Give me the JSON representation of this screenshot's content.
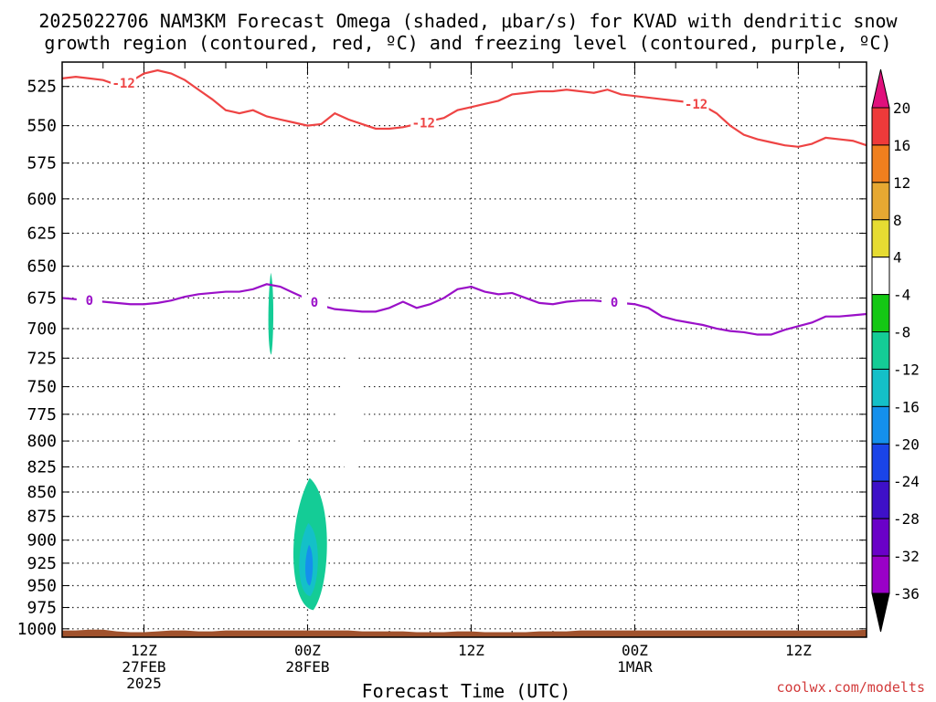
{
  "title": {
    "line1": "2025022706 NAM3KM Forecast Omega (shaded, μbar/s) for KVAD with dendritic snow",
    "line2": "growth region (contoured, red, ºC) and freezing level (contoured, purple, ºC)"
  },
  "credit": "coolwx.com/modelts",
  "chart_data": {
    "type": "heatmap",
    "xlabel": "Forecast Time (UTC)",
    "x_ticks": [
      {
        "hour": 6,
        "label": "12Z",
        "label2": "27FEB",
        "label3": "2025"
      },
      {
        "hour": 18,
        "label": "00Z",
        "label2": "28FEB",
        "label3": ""
      },
      {
        "hour": 30,
        "label": "12Z",
        "label2": "",
        "label3": ""
      },
      {
        "hour": 42,
        "label": "00Z",
        "label2": "1MAR",
        "label3": ""
      },
      {
        "hour": 54,
        "label": "12Z",
        "label2": "",
        "label3": ""
      }
    ],
    "xlim": [
      0,
      59
    ],
    "ylabel": "",
    "y_scale": "log-pressure",
    "ylim": [
      1010,
      510
    ],
    "y_ticks": [
      "525",
      "550",
      "575",
      "600",
      "625",
      "650",
      "675",
      "700",
      "725",
      "750",
      "775",
      "800",
      "825",
      "850",
      "875",
      "900",
      "925",
      "950",
      "975",
      "1000"
    ],
    "grid": true,
    "colorbar": {
      "levels": [
        "-36",
        "-32",
        "-28",
        "-24",
        "-20",
        "-16",
        "-12",
        "-8",
        "-4",
        "4",
        "8",
        "12",
        "16",
        "20"
      ],
      "colors": [
        "#000000",
        "#aaaaaa",
        "#9a00c8",
        "#6a00c8",
        "#3e10c8",
        "#1a44e8",
        "#1490ec",
        "#14c0c8",
        "#14cc96",
        "#14c814",
        "#ffffff",
        "#e6dc32",
        "#e6a832",
        "#f07f1e",
        "#ee3a3a",
        "#e0107c"
      ]
    },
    "contours": [
      {
        "name": "-12",
        "color": "#ee4444",
        "x": [
          0,
          1,
          2,
          3,
          4,
          5,
          6,
          7,
          8,
          9,
          10,
          11,
          12,
          13,
          14,
          15,
          16,
          17,
          18,
          19,
          20,
          21,
          22,
          23,
          24,
          25,
          26,
          27,
          28,
          29,
          30,
          31,
          32,
          33,
          34,
          35,
          36,
          37,
          38,
          39,
          40,
          41,
          42,
          43,
          44,
          45,
          46,
          47,
          48,
          49,
          50,
          51,
          52,
          53,
          54,
          55,
          56,
          57,
          58,
          59
        ],
        "y": [
          520,
          519,
          520,
          521,
          524,
          522,
          517,
          515,
          517,
          521,
          527,
          533,
          540,
          542,
          540,
          544,
          546,
          548,
          550,
          549,
          542,
          546,
          549,
          552,
          552,
          551,
          549,
          547,
          545,
          540,
          538,
          536,
          534,
          530,
          529,
          528,
          528,
          527,
          528,
          529,
          527,
          530,
          531,
          532,
          533,
          534,
          535,
          537,
          542,
          550,
          556,
          559,
          561,
          563,
          564,
          562,
          558,
          559,
          560,
          563
        ]
      },
      {
        "name": "0",
        "color": "#9a10c8",
        "x": [
          0,
          1,
          2,
          3,
          4,
          5,
          6,
          7,
          8,
          9,
          10,
          11,
          12,
          13,
          14,
          15,
          16,
          17,
          18,
          19,
          20,
          21,
          22,
          23,
          24,
          25,
          26,
          27,
          28,
          29,
          30,
          31,
          32,
          33,
          34,
          35,
          36,
          37,
          38,
          39,
          40,
          41,
          42,
          43,
          44,
          45,
          46,
          47,
          48,
          49,
          50,
          51,
          52,
          53,
          54,
          55,
          56,
          57,
          58,
          59
        ],
        "y": [
          675,
          676,
          677,
          678,
          679,
          680,
          680,
          679,
          677,
          674,
          672,
          671,
          670,
          670,
          668,
          664,
          666,
          671,
          676,
          681,
          684,
          685,
          686,
          686,
          683,
          678,
          683,
          680,
          675,
          668,
          666,
          670,
          672,
          671,
          675,
          679,
          680,
          678,
          677,
          677,
          678,
          679,
          680,
          683,
          690,
          693,
          695,
          697,
          700,
          702,
          703,
          705,
          705,
          701,
          698,
          695,
          690,
          690,
          689,
          688
        ],
        "labels_at": [
          2,
          18.5,
          40
        ]
      }
    ],
    "shaded_regions": [
      {
        "value_range": "-8 to -4",
        "x": [
          15.1,
          15.5
        ],
        "y": [
          655,
          722
        ]
      },
      {
        "value_range": "4 to 8",
        "x": [
          16.7,
          17.2
        ],
        "y": [
          782,
          815
        ]
      },
      {
        "value_range": "4 to 8",
        "x": [
          20.1,
          22.2
        ],
        "y": [
          718,
          835
        ]
      },
      {
        "value_range": "-8 to -4",
        "x": [
          16.8,
          19.5
        ],
        "y": [
          836,
          978
        ]
      },
      {
        "value_range": "-12 to -8",
        "x": [
          17.3,
          18.8
        ],
        "y": [
          882,
          962
        ]
      },
      {
        "value_range": "-16 to -12",
        "x": [
          17.8,
          18.4
        ],
        "y": [
          905,
          950
        ]
      }
    ],
    "terrain": {
      "color": "#a0522d",
      "surface_pressure": [
        1002,
        1002,
        1001,
        1001,
        1003,
        1004,
        1004,
        1003,
        1002,
        1002,
        1003,
        1003,
        1002,
        1002,
        1002,
        1002,
        1002,
        1002,
        1002,
        1002,
        1002,
        1002,
        1003,
        1003,
        1003,
        1003,
        1004,
        1004,
        1004,
        1003,
        1003,
        1004,
        1004,
        1004,
        1004,
        1003,
        1003,
        1003,
        1002,
        1002,
        1002,
        1002,
        1002,
        1002,
        1002,
        1002,
        1002,
        1002,
        1002,
        1002,
        1002,
        1002,
        1002,
        1002,
        1002,
        1002,
        1002,
        1002,
        1002,
        1001
      ]
    }
  }
}
